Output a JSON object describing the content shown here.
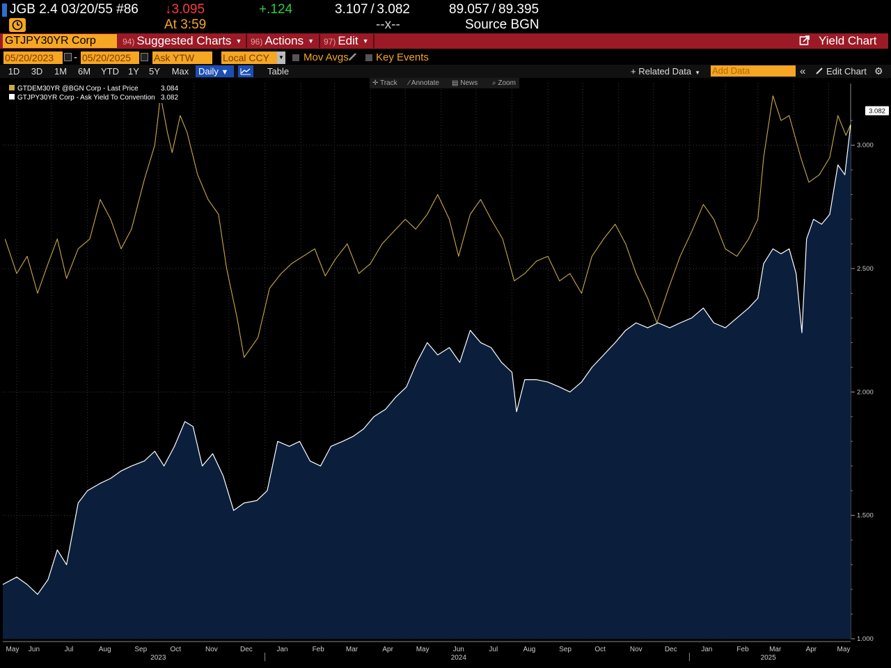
{
  "header": {
    "security": "JGB 2.4 03/20/55 #86",
    "last_price": "↓3.095",
    "change": "+.124",
    "yield_bid_ask": "3.107 / 3.082",
    "price_bid_ask": "89.057 / 89.395",
    "time": "At 3:59",
    "size": "--x--",
    "source": "Source BGN"
  },
  "toolbar": {
    "ticker": "GTJPY30YR Corp",
    "suggested": {
      "num": "94)",
      "label": "Suggested Charts"
    },
    "actions": {
      "num": "96)",
      "label": "Actions"
    },
    "edit": {
      "num": "97)",
      "label": "Edit"
    },
    "yield_chart": "Yield Chart"
  },
  "controls": {
    "start_date": "05/20/2023",
    "date_sep": "-",
    "end_date": "05/20/2025",
    "field": "Ask YTW",
    "currency": "Local CCY",
    "mov_avgs": "Mov Avgs",
    "key_events": "Key Events"
  },
  "periods": [
    "1D",
    "3D",
    "1M",
    "6M",
    "YTD",
    "1Y",
    "5Y",
    "Max"
  ],
  "frequency": "Daily",
  "table_label": "Table",
  "related_data": "+ Related Data",
  "add_data_placeholder": "Add Data",
  "edit_chart": "Edit Chart",
  "chart_tools": [
    "Track",
    "Annotate",
    "News",
    "Zoom"
  ],
  "colors": {
    "accent": "#f5a623",
    "toolbar": "#9b1a25",
    "down": "#ff3b3b",
    "up": "#2ecc40",
    "de_series": "#c9a94a",
    "jp_series": "#ffffff",
    "jp_fill": "#0b1f3d"
  },
  "chart_data": {
    "type": "line",
    "x_start": "2023-05-20",
    "x_end": "2025-05-20",
    "ylim": [
      1.0,
      3.25
    ],
    "y_ticks": [
      "1.000",
      "1.500",
      "2.000",
      "2.500",
      "3.000"
    ],
    "months": [
      "May",
      "Jun",
      "Jul",
      "Aug",
      "Sep",
      "Oct",
      "Nov",
      "Dec",
      "Jan",
      "Feb",
      "Mar",
      "Apr",
      "May",
      "Jun",
      "Jul",
      "Aug",
      "Sep",
      "Oct",
      "Nov",
      "Dec",
      "Jan",
      "Feb",
      "Mar",
      "Apr",
      "May"
    ],
    "years": [
      "2023",
      "2024",
      "2025"
    ],
    "last_value_label": "3.082",
    "grid": true,
    "series": [
      {
        "name": "GTDEM30YR @BGN Corp - Last Price",
        "legend_value": "3.084",
        "color": "#c9a94a",
        "area": false,
        "points": [
          [
            "2023-05-22",
            2.62
          ],
          [
            "2023-06-01",
            2.48
          ],
          [
            "2023-06-10",
            2.55
          ],
          [
            "2023-06-19",
            2.4
          ],
          [
            "2023-06-28",
            2.52
          ],
          [
            "2023-07-06",
            2.62
          ],
          [
            "2023-07-14",
            2.46
          ],
          [
            "2023-07-24",
            2.58
          ],
          [
            "2023-08-03",
            2.62
          ],
          [
            "2023-08-12",
            2.78
          ],
          [
            "2023-08-21",
            2.7
          ],
          [
            "2023-08-30",
            2.58
          ],
          [
            "2023-09-08",
            2.66
          ],
          [
            "2023-09-19",
            2.86
          ],
          [
            "2023-09-28",
            3.0
          ],
          [
            "2023-10-03",
            3.2
          ],
          [
            "2023-10-09",
            3.05
          ],
          [
            "2023-10-13",
            2.97
          ],
          [
            "2023-10-20",
            3.12
          ],
          [
            "2023-10-26",
            3.05
          ],
          [
            "2023-11-04",
            2.88
          ],
          [
            "2023-11-13",
            2.78
          ],
          [
            "2023-11-22",
            2.72
          ],
          [
            "2023-11-29",
            2.5
          ],
          [
            "2023-12-08",
            2.3
          ],
          [
            "2023-12-14",
            2.14
          ],
          [
            "2023-12-26",
            2.22
          ],
          [
            "2024-01-05",
            2.42
          ],
          [
            "2024-01-15",
            2.48
          ],
          [
            "2024-01-24",
            2.52
          ],
          [
            "2024-02-03",
            2.55
          ],
          [
            "2024-02-13",
            2.58
          ],
          [
            "2024-02-22",
            2.47
          ],
          [
            "2024-03-02",
            2.54
          ],
          [
            "2024-03-12",
            2.6
          ],
          [
            "2024-03-22",
            2.48
          ],
          [
            "2024-04-01",
            2.52
          ],
          [
            "2024-04-11",
            2.6
          ],
          [
            "2024-04-21",
            2.65
          ],
          [
            "2024-05-01",
            2.7
          ],
          [
            "2024-05-10",
            2.66
          ],
          [
            "2024-05-20",
            2.72
          ],
          [
            "2024-05-29",
            2.8
          ],
          [
            "2024-06-08",
            2.7
          ],
          [
            "2024-06-16",
            2.55
          ],
          [
            "2024-06-26",
            2.72
          ],
          [
            "2024-07-05",
            2.78
          ],
          [
            "2024-07-14",
            2.7
          ],
          [
            "2024-07-24",
            2.62
          ],
          [
            "2024-08-03",
            2.45
          ],
          [
            "2024-08-12",
            2.48
          ],
          [
            "2024-08-22",
            2.53
          ],
          [
            "2024-09-01",
            2.55
          ],
          [
            "2024-09-11",
            2.45
          ],
          [
            "2024-09-20",
            2.48
          ],
          [
            "2024-09-30",
            2.4
          ],
          [
            "2024-10-09",
            2.55
          ],
          [
            "2024-10-19",
            2.62
          ],
          [
            "2024-10-29",
            2.68
          ],
          [
            "2024-11-07",
            2.6
          ],
          [
            "2024-11-16",
            2.48
          ],
          [
            "2024-11-26",
            2.38
          ],
          [
            "2024-12-04",
            2.28
          ],
          [
            "2024-12-14",
            2.42
          ],
          [
            "2024-12-24",
            2.55
          ],
          [
            "2025-01-03",
            2.65
          ],
          [
            "2025-01-13",
            2.76
          ],
          [
            "2025-01-22",
            2.7
          ],
          [
            "2025-02-01",
            2.58
          ],
          [
            "2025-02-11",
            2.55
          ],
          [
            "2025-02-21",
            2.62
          ],
          [
            "2025-03-01",
            2.7
          ],
          [
            "2025-03-06",
            2.95
          ],
          [
            "2025-03-14",
            3.2
          ],
          [
            "2025-03-21",
            3.1
          ],
          [
            "2025-03-28",
            3.12
          ],
          [
            "2025-04-07",
            2.95
          ],
          [
            "2025-04-14",
            2.85
          ],
          [
            "2025-04-23",
            2.88
          ],
          [
            "2025-05-02",
            2.95
          ],
          [
            "2025-05-09",
            3.12
          ],
          [
            "2025-05-16",
            3.04
          ],
          [
            "2025-05-20",
            3.084
          ]
        ]
      },
      {
        "name": "GTJPY30YR Corp - Ask Yield To Convention",
        "legend_value": "3.082",
        "color": "#ffffff",
        "area": true,
        "points": [
          [
            "2023-05-20",
            1.22
          ],
          [
            "2023-06-01",
            1.25
          ],
          [
            "2023-06-10",
            1.22
          ],
          [
            "2023-06-19",
            1.18
          ],
          [
            "2023-06-28",
            1.24
          ],
          [
            "2023-07-06",
            1.36
          ],
          [
            "2023-07-14",
            1.3
          ],
          [
            "2023-07-24",
            1.55
          ],
          [
            "2023-08-01",
            1.6
          ],
          [
            "2023-08-12",
            1.63
          ],
          [
            "2023-08-21",
            1.65
          ],
          [
            "2023-08-30",
            1.68
          ],
          [
            "2023-09-08",
            1.7
          ],
          [
            "2023-09-19",
            1.72
          ],
          [
            "2023-09-28",
            1.76
          ],
          [
            "2023-10-06",
            1.7
          ],
          [
            "2023-10-15",
            1.78
          ],
          [
            "2023-10-24",
            1.88
          ],
          [
            "2023-10-31",
            1.86
          ],
          [
            "2023-11-08",
            1.7
          ],
          [
            "2023-11-17",
            1.75
          ],
          [
            "2023-11-26",
            1.66
          ],
          [
            "2023-12-05",
            1.52
          ],
          [
            "2023-12-14",
            1.55
          ],
          [
            "2023-12-25",
            1.56
          ],
          [
            "2024-01-03",
            1.6
          ],
          [
            "2024-01-12",
            1.8
          ],
          [
            "2024-01-22",
            1.78
          ],
          [
            "2024-01-31",
            1.8
          ],
          [
            "2024-02-09",
            1.72
          ],
          [
            "2024-02-18",
            1.7
          ],
          [
            "2024-02-27",
            1.78
          ],
          [
            "2024-03-08",
            1.8
          ],
          [
            "2024-03-17",
            1.82
          ],
          [
            "2024-03-26",
            1.85
          ],
          [
            "2024-04-04",
            1.9
          ],
          [
            "2024-04-14",
            1.93
          ],
          [
            "2024-04-23",
            1.98
          ],
          [
            "2024-05-02",
            2.02
          ],
          [
            "2024-05-11",
            2.12
          ],
          [
            "2024-05-20",
            2.2
          ],
          [
            "2024-05-29",
            2.15
          ],
          [
            "2024-06-08",
            2.18
          ],
          [
            "2024-06-17",
            2.12
          ],
          [
            "2024-06-26",
            2.25
          ],
          [
            "2024-07-05",
            2.2
          ],
          [
            "2024-07-14",
            2.18
          ],
          [
            "2024-07-23",
            2.12
          ],
          [
            "2024-08-01",
            2.08
          ],
          [
            "2024-08-05",
            1.92
          ],
          [
            "2024-08-12",
            2.05
          ],
          [
            "2024-08-22",
            2.05
          ],
          [
            "2024-09-01",
            2.04
          ],
          [
            "2024-09-11",
            2.02
          ],
          [
            "2024-09-20",
            2.0
          ],
          [
            "2024-09-30",
            2.04
          ],
          [
            "2024-10-09",
            2.1
          ],
          [
            "2024-10-19",
            2.15
          ],
          [
            "2024-10-29",
            2.2
          ],
          [
            "2024-11-07",
            2.25
          ],
          [
            "2024-11-16",
            2.28
          ],
          [
            "2024-11-26",
            2.26
          ],
          [
            "2024-12-05",
            2.28
          ],
          [
            "2024-12-15",
            2.26
          ],
          [
            "2024-12-24",
            2.28
          ],
          [
            "2025-01-03",
            2.3
          ],
          [
            "2025-01-13",
            2.34
          ],
          [
            "2025-01-22",
            2.28
          ],
          [
            "2025-02-01",
            2.26
          ],
          [
            "2025-02-11",
            2.3
          ],
          [
            "2025-02-21",
            2.34
          ],
          [
            "2025-03-01",
            2.38
          ],
          [
            "2025-03-06",
            2.52
          ],
          [
            "2025-03-14",
            2.58
          ],
          [
            "2025-03-21",
            2.56
          ],
          [
            "2025-03-28",
            2.58
          ],
          [
            "2025-04-03",
            2.48
          ],
          [
            "2025-04-08",
            2.24
          ],
          [
            "2025-04-12",
            2.62
          ],
          [
            "2025-04-18",
            2.7
          ],
          [
            "2025-04-25",
            2.68
          ],
          [
            "2025-05-02",
            2.72
          ],
          [
            "2025-05-09",
            2.92
          ],
          [
            "2025-05-15",
            2.88
          ],
          [
            "2025-05-20",
            3.082
          ]
        ]
      }
    ]
  }
}
